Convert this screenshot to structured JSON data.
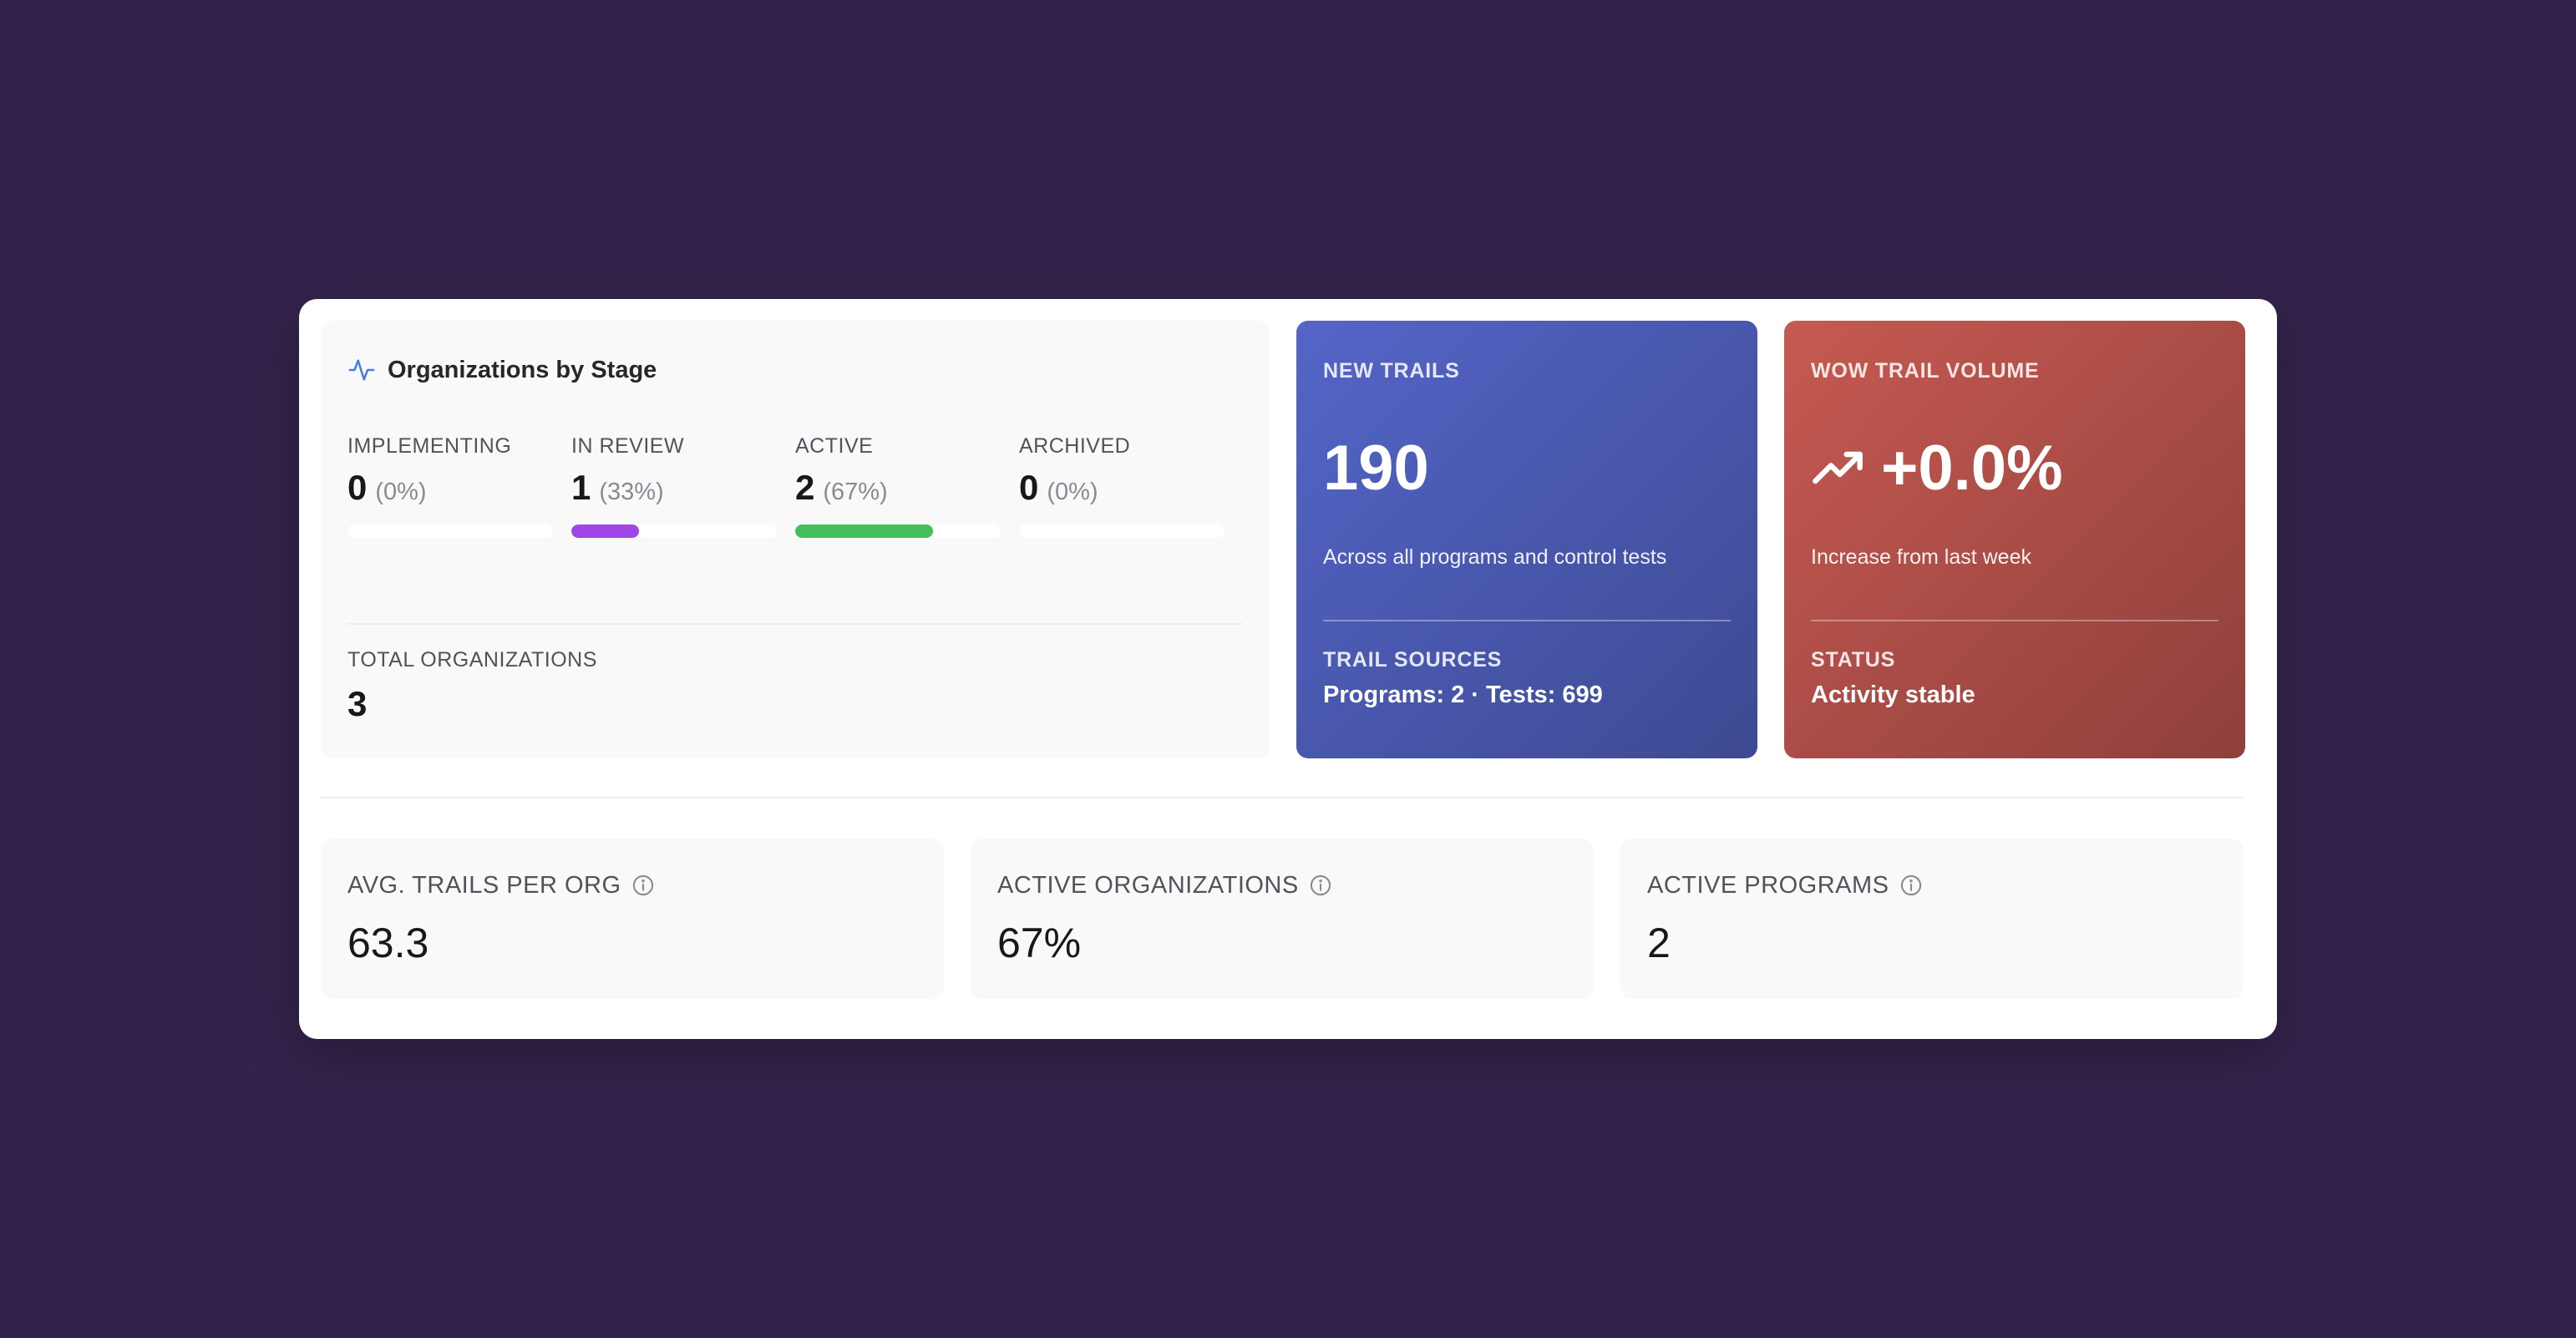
{
  "stage_card": {
    "title": "Organizations by Stage",
    "icon": "activity-pulse-icon",
    "stages": [
      {
        "label": "IMPLEMENTING",
        "count": "0",
        "percent": "(0%)",
        "fill": 0,
        "color": "#ffffff"
      },
      {
        "label": "IN REVIEW",
        "count": "1",
        "percent": "(33%)",
        "fill": 0.33,
        "color": "#a046e8"
      },
      {
        "label": "ACTIVE",
        "count": "2",
        "percent": "(67%)",
        "fill": 0.67,
        "color": "#43c05a"
      },
      {
        "label": "ARCHIVED",
        "count": "0",
        "percent": "(0%)",
        "fill": 0,
        "color": "#ffffff"
      }
    ],
    "total_label": "TOTAL ORGANIZATIONS",
    "total_value": "3"
  },
  "new_trails": {
    "label": "NEW TRAILS",
    "value": "190",
    "subtitle": "Across all programs and control tests",
    "footer_label": "TRAIL SOURCES",
    "footer_value": "Programs: 2 · Tests: 699"
  },
  "wow_volume": {
    "label": "WOW TRAIL VOLUME",
    "icon": "trending-up-icon",
    "value": "+0.0%",
    "subtitle": "Increase from last week",
    "footer_label": "STATUS",
    "footer_value": "Activity stable"
  },
  "metrics": [
    {
      "label": "AVG. TRAILS PER ORG",
      "value": "63.3",
      "icon": "info-icon"
    },
    {
      "label": "ACTIVE ORGANIZATIONS",
      "value": "67%",
      "icon": "info-icon"
    },
    {
      "label": "ACTIVE PROGRAMS",
      "value": "2",
      "icon": "info-icon"
    }
  ],
  "colors": {
    "background": "#33234b",
    "accent_blue": "#5465c8",
    "accent_red": "#c65a51",
    "review_purple": "#a046e8",
    "active_green": "#43c05a"
  }
}
